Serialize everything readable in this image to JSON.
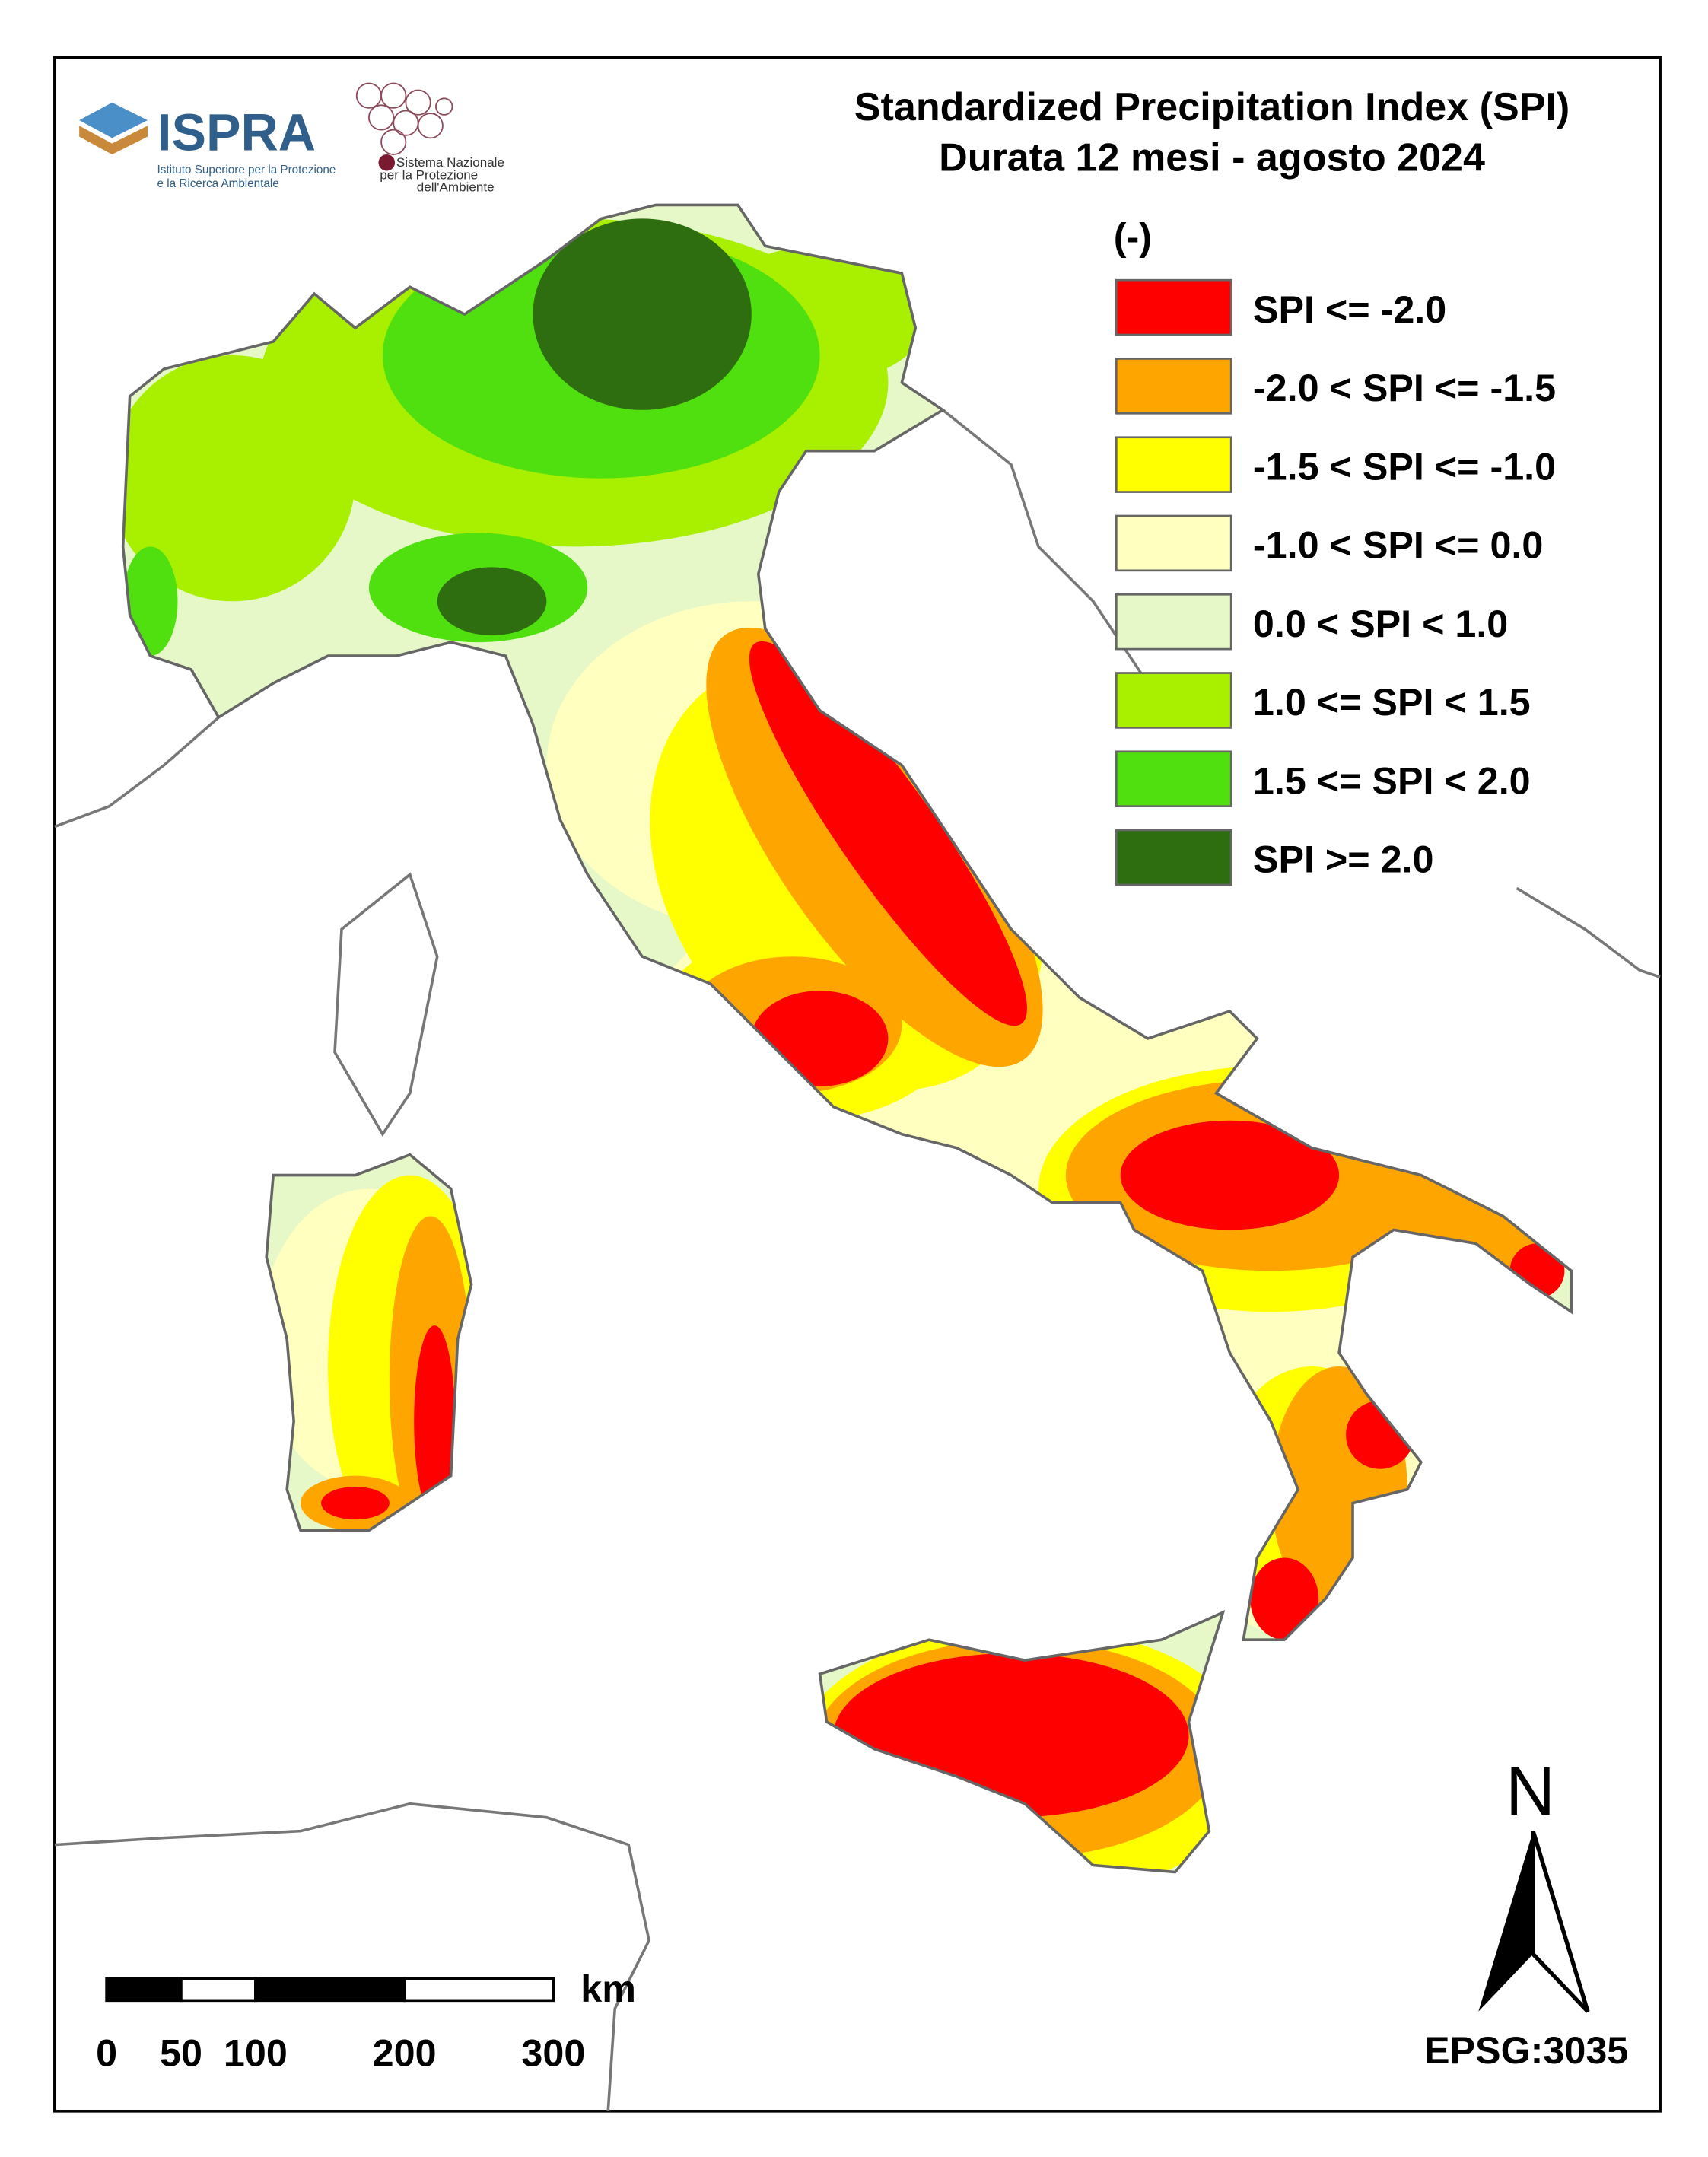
{
  "header": {
    "title_lines": [
      "Standardized Precipitation  Index (SPI)",
      "Durata 12 mesi - agosto 2024"
    ]
  },
  "logos": {
    "ispra": "ISPRA",
    "ispra_sub": [
      "Istituto Superiore per la Protezione",
      "e la Ricerca Ambientale"
    ],
    "snpa": [
      "Sistema Nazionale",
      "per la Protezione",
      "dell'Ambiente"
    ]
  },
  "legend": {
    "unit": "(-)",
    "items": [
      {
        "label": "SPI <= -2.0",
        "color": "#ff0000"
      },
      {
        "label": "-2.0 < SPI <= -1.5",
        "color": "#ffa500"
      },
      {
        "label": "-1.5 < SPI <= -1.0",
        "color": "#ffff00"
      },
      {
        "label": "-1.0 < SPI <= 0.0",
        "color": "#ffffc0"
      },
      {
        "label": "0.0 < SPI < 1.0",
        "color": "#e6f7c8"
      },
      {
        "label": "1.0 <= SPI < 1.5",
        "color": "#a8f000"
      },
      {
        "label": "1.5 <= SPI < 2.0",
        "color": "#50e010"
      },
      {
        "label": "SPI >= 2.0",
        "color": "#2e6e10"
      }
    ]
  },
  "scale_bar": {
    "unit": "km",
    "ticks": [
      0,
      50,
      100,
      200,
      300
    ]
  },
  "north": "N",
  "projection": "EPSG:3035"
}
